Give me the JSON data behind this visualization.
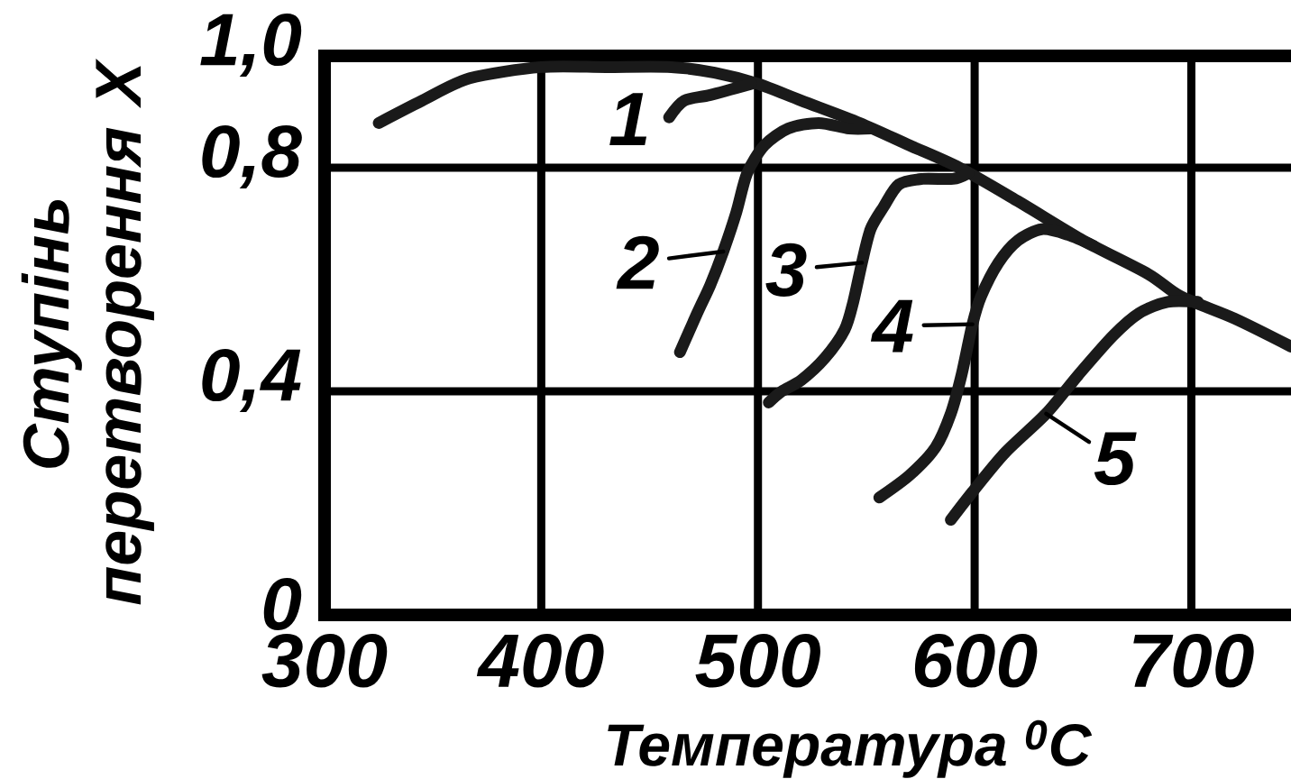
{
  "chart_data": {
    "type": "line",
    "xlabel": "Температура $^{0}$C",
    "ylabel": "Ступінь перетворення X",
    "xlim": [
      300,
      746
    ],
    "ylim": [
      0,
      1.0
    ],
    "xticks": [
      300,
      400,
      500,
      600,
      700
    ],
    "yticks": [
      0,
      {
        "value": 0.4,
        "label": "0,4"
      },
      {
        "value": 0.8,
        "label": "0,8"
      },
      {
        "value": 1.0,
        "label": "1,0"
      }
    ],
    "grid": true,
    "marker": "none",
    "line_style": "solid",
    "series": [
      {
        "color": "#1a1a1a",
        "x": [
          325,
          345,
          367,
          400,
          430,
          460,
          480,
          500,
          520,
          547,
          570,
          593,
          620,
          650,
          680,
          695,
          720,
          746
        ],
        "values": [
          0.88,
          0.92,
          0.96,
          0.98,
          0.98,
          0.98,
          0.97,
          0.95,
          0.92,
          0.88,
          0.84,
          0.8,
          0.74,
          0.67,
          0.61,
          0.57,
          0.53,
          0.48
        ]
      },
      {
        "color": "#1a1a1a",
        "x": [
          459,
          466,
          478,
          497
        ],
        "values": [
          0.89,
          0.92,
          0.93,
          0.95
        ]
      },
      {
        "color": "#1a1a1a",
        "x": [
          464,
          472,
          478,
          484,
          490,
          495,
          503,
          514,
          528,
          542,
          552
        ],
        "values": [
          0.47,
          0.54,
          0.59,
          0.65,
          0.72,
          0.79,
          0.84,
          0.87,
          0.88,
          0.87,
          0.87
        ]
      },
      {
        "color": "#1a1a1a",
        "x": [
          505,
          511,
          520,
          531,
          540,
          544,
          548,
          552,
          558,
          565,
          576,
          590,
          597
        ],
        "values": [
          0.38,
          0.4,
          0.42,
          0.46,
          0.51,
          0.56,
          0.63,
          0.69,
          0.73,
          0.77,
          0.78,
          0.78,
          0.79
        ]
      },
      {
        "color": "#1a1a1a",
        "x": [
          556,
          570,
          582,
          589,
          594,
          599,
          603,
          611,
          620,
          631,
          643,
          655
        ],
        "values": [
          0.21,
          0.25,
          0.3,
          0.36,
          0.43,
          0.52,
          0.57,
          0.63,
          0.67,
          0.69,
          0.68,
          0.66
        ]
      },
      {
        "color": "#1a1a1a",
        "x": [
          589,
          599,
          614,
          633,
          648,
          664,
          676,
          689,
          703
        ],
        "values": [
          0.17,
          0.22,
          0.29,
          0.36,
          0.43,
          0.5,
          0.54,
          0.56,
          0.56
        ]
      }
    ],
    "annotations": [
      {
        "text": "1",
        "x": 459,
        "y": 0.89
      },
      {
        "text": "2",
        "x": 484,
        "y": 0.65
      },
      {
        "text": "3",
        "x": 548,
        "y": 0.63
      },
      {
        "text": "4",
        "x": 599,
        "y": 0.52
      },
      {
        "text": "5",
        "x": 633,
        "y": 0.36
      }
    ]
  }
}
